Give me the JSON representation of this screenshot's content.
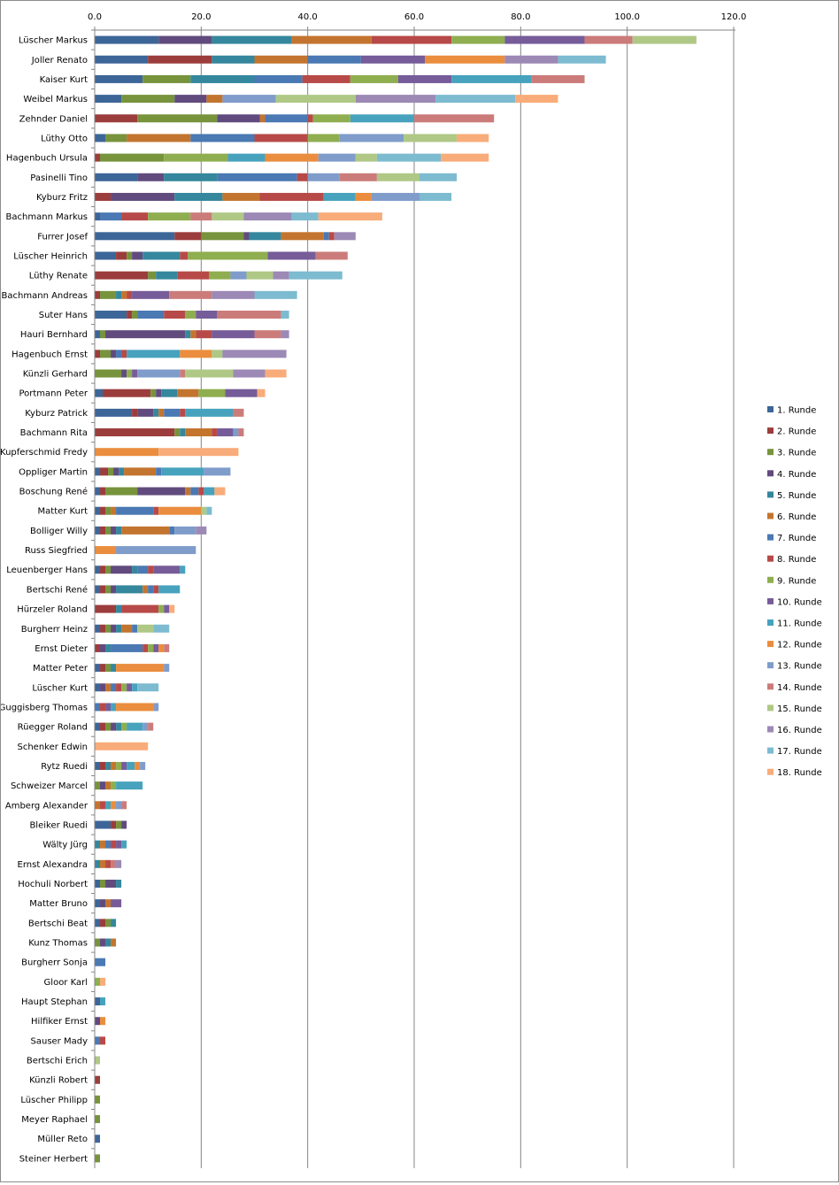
{
  "chart_data": {
    "type": "bar",
    "orientation": "horizontal",
    "stacked": true,
    "title": "",
    "xlabel": "",
    "ylabel": "",
    "xlim": [
      0,
      120
    ],
    "x_ticks": [
      "0.0",
      "20.0",
      "40.0",
      "60.0",
      "80.0",
      "100.0",
      "120.0"
    ],
    "grid": true,
    "legend_position": "right",
    "series_names": [
      "1. Runde",
      "2. Runde",
      "3. Runde",
      "4. Runde",
      "5. Runde",
      "6. Runde",
      "7. Runde",
      "8. Runde",
      "9. Runde",
      "10. Runde",
      "11. Runde",
      "12. Runde",
      "13. Runde",
      "14. Runde",
      "15. Runde",
      "16. Runde",
      "17. Runde",
      "18. Runde"
    ],
    "series_colors": [
      "#3d6698",
      "#9b3d3c",
      "#77933c",
      "#614b7e",
      "#35879d",
      "#c3752f",
      "#4a79b3",
      "#b74a48",
      "#8fae50",
      "#765c99",
      "#47a2bd",
      "#ea8d3e",
      "#7f9cca",
      "#cb7c7a",
      "#afc886",
      "#9c89b5",
      "#7dbbd0",
      "#f8ac79"
    ],
    "rows": [
      {
        "name": "Lüscher Markus",
        "values": [
          12,
          0,
          0,
          10,
          15,
          15,
          0,
          15,
          10,
          15,
          0,
          0,
          0,
          9,
          12,
          0,
          0,
          0
        ]
      },
      {
        "name": "Joller Renato",
        "values": [
          10,
          12,
          0,
          0,
          8,
          10,
          10,
          0,
          0,
          12,
          0,
          15,
          0,
          0,
          0,
          10,
          9,
          0
        ]
      },
      {
        "name": "Kaiser Kurt",
        "values": [
          9,
          0,
          9,
          0,
          12,
          0,
          9,
          9,
          9,
          10,
          15,
          0,
          0,
          10,
          0,
          0,
          0,
          0
        ]
      },
      {
        "name": "Weibel Markus",
        "values": [
          5,
          0,
          10,
          6,
          0,
          3,
          0,
          0,
          0,
          0,
          0,
          0,
          10,
          0,
          15,
          15,
          15,
          8
        ]
      },
      {
        "name": "Zehnder Daniel",
        "values": [
          0,
          8,
          15,
          8,
          0,
          1,
          8,
          1,
          7,
          0,
          12,
          0,
          0,
          15,
          0,
          0,
          0,
          0
        ]
      },
      {
        "name": "Lüthy Otto",
        "values": [
          2,
          0,
          4,
          0,
          0,
          12,
          12,
          10,
          6,
          0,
          0,
          0,
          12,
          0,
          10,
          0,
          0,
          6
        ]
      },
      {
        "name": "Hagenbuch Ursula",
        "values": [
          0,
          1,
          12,
          0,
          0,
          0,
          0,
          0,
          12,
          0,
          7,
          10,
          7,
          0,
          4,
          0,
          12,
          9
        ]
      },
      {
        "name": "Pasinelli Tino",
        "values": [
          8,
          0,
          0,
          5,
          10,
          0,
          15,
          2,
          0,
          0,
          0,
          0,
          6,
          7,
          8,
          0,
          7,
          0
        ]
      },
      {
        "name": "Kyburz Fritz",
        "values": [
          0,
          3,
          0,
          12,
          9,
          7,
          0,
          12,
          0,
          0,
          6,
          3,
          9,
          0,
          0,
          0,
          6,
          0
        ]
      },
      {
        "name": "Bachmann Markus",
        "values": [
          1,
          0,
          0,
          0,
          0,
          0,
          4,
          5,
          8,
          0,
          0,
          0,
          0,
          4,
          6,
          9,
          5,
          12
        ]
      },
      {
        "name": "Furrer Josef",
        "values": [
          15,
          5,
          8,
          1,
          6,
          8,
          1,
          1,
          0,
          0,
          0,
          0,
          0,
          0,
          0,
          4,
          0,
          0
        ]
      },
      {
        "name": "Lüscher Heinrich",
        "values": [
          4,
          2,
          1,
          2,
          7,
          0,
          0,
          1.5,
          15,
          9,
          0,
          0,
          0,
          6,
          0,
          0,
          0,
          0
        ]
      },
      {
        "name": "Lüthy Renate",
        "values": [
          0,
          10,
          1.5,
          0,
          4,
          0,
          0,
          6,
          4,
          0,
          0,
          0,
          3,
          0,
          5,
          3,
          10,
          0
        ]
      },
      {
        "name": "Bachmann Andreas",
        "values": [
          0,
          1,
          3,
          0,
          1,
          1,
          0,
          1,
          0,
          7,
          0,
          0,
          0,
          8,
          0,
          8,
          8,
          0
        ]
      },
      {
        "name": "Suter Hans",
        "values": [
          6,
          1,
          1,
          0,
          0,
          0,
          5,
          4,
          2,
          4,
          0,
          0,
          0,
          12,
          0,
          0,
          1.5,
          0
        ]
      },
      {
        "name": "Hauri Bernhard",
        "values": [
          1,
          0,
          1,
          15,
          1,
          1,
          0,
          3,
          0,
          8,
          0,
          0,
          0,
          5,
          0,
          1.5,
          0,
          0
        ]
      },
      {
        "name": "Hagenbuch Ernst",
        "values": [
          0,
          1,
          2,
          1,
          0,
          0,
          1,
          1,
          0,
          0,
          10,
          6,
          0,
          0,
          2,
          12,
          0,
          0
        ]
      },
      {
        "name": "Künzli Gerhard",
        "values": [
          0,
          0,
          5,
          1,
          0,
          0,
          0,
          0,
          1,
          1,
          0,
          0,
          8,
          1,
          9,
          6,
          0,
          4
        ]
      },
      {
        "name": "Portmann Peter",
        "values": [
          1.5,
          9,
          1,
          1,
          3,
          4,
          0,
          0,
          5,
          6,
          0,
          0,
          0,
          0,
          0,
          0,
          0,
          1.5
        ]
      },
      {
        "name": "Kyburz Patrick",
        "values": [
          7,
          1,
          0,
          3,
          1,
          1,
          3,
          1,
          0,
          0,
          9,
          0,
          0,
          2,
          0,
          0,
          0,
          0
        ]
      },
      {
        "name": "Bachmann Rita",
        "values": [
          0,
          15,
          1,
          0,
          1,
          5,
          0,
          1,
          0,
          3,
          0,
          0,
          1,
          1,
          0,
          0,
          0,
          0
        ]
      },
      {
        "name": "Kupferschmid Fredy",
        "values": [
          0,
          0,
          0,
          0,
          0,
          0,
          0,
          0,
          0,
          0,
          0,
          12,
          0,
          0,
          0,
          0,
          0,
          15
        ]
      },
      {
        "name": "Oppliger Martin",
        "values": [
          1,
          1.5,
          1,
          1,
          1,
          6,
          1,
          0,
          0,
          0,
          8,
          0,
          5,
          0,
          0,
          0,
          0,
          0
        ]
      },
      {
        "name": "Boschung René",
        "values": [
          1,
          1,
          6,
          9,
          0,
          1,
          1.5,
          1,
          0,
          0,
          2,
          0,
          0,
          0,
          0,
          0,
          0,
          2
        ]
      },
      {
        "name": "Matter Kurt",
        "values": [
          1,
          1,
          1,
          0,
          0,
          1,
          7,
          1,
          0,
          0,
          0,
          8,
          0,
          0,
          1,
          0,
          1,
          0
        ]
      },
      {
        "name": "Bolliger Willy",
        "values": [
          1,
          1,
          1,
          1,
          1,
          9,
          1,
          0,
          0,
          0,
          0,
          0,
          4,
          0,
          0,
          2,
          0,
          0
        ]
      },
      {
        "name": "Russ Siegfried",
        "values": [
          0,
          0,
          0,
          0,
          0,
          0,
          0,
          0,
          0,
          0,
          0,
          4,
          15,
          0,
          0,
          0,
          0,
          0
        ]
      },
      {
        "name": "Leuenberger Hans",
        "values": [
          1,
          1,
          1,
          4,
          1,
          0,
          2,
          1,
          0,
          5,
          1,
          0,
          0,
          0,
          0,
          0,
          0,
          0
        ]
      },
      {
        "name": "Bertschi René",
        "values": [
          1,
          1,
          1,
          1,
          5,
          1,
          1,
          1,
          0,
          0,
          4,
          0,
          0,
          0,
          0,
          0,
          0,
          0
        ]
      },
      {
        "name": "Hürzeler Roland",
        "values": [
          0,
          4,
          0,
          0,
          1,
          0,
          0,
          7,
          1,
          1,
          0,
          0,
          0,
          0,
          0,
          0,
          0,
          1
        ]
      },
      {
        "name": "Burgherr Heinz",
        "values": [
          1,
          1,
          1,
          1,
          1,
          2,
          1,
          0,
          0,
          0,
          0,
          0,
          0,
          0,
          3,
          0,
          3,
          0
        ]
      },
      {
        "name": "Ernst Dieter",
        "values": [
          0,
          1,
          0,
          1,
          1,
          0,
          6,
          1,
          1,
          1,
          0,
          1,
          0,
          1,
          0,
          0,
          0,
          0
        ]
      },
      {
        "name": "Matter Peter",
        "values": [
          1,
          1,
          1,
          0,
          1,
          0,
          0,
          0,
          0,
          0,
          0,
          9,
          1,
          0,
          0,
          0,
          0,
          0
        ]
      },
      {
        "name": "Lüscher Kurt",
        "values": [
          1,
          0,
          0,
          1,
          0,
          1,
          1,
          1,
          1,
          1,
          1,
          0,
          0,
          0,
          0,
          0,
          4,
          0
        ]
      },
      {
        "name": "Guggisberg Thomas",
        "values": [
          0,
          0,
          0,
          0,
          0,
          0,
          1,
          1,
          0,
          1,
          1,
          7,
          1,
          0,
          0,
          0,
          0,
          0
        ]
      },
      {
        "name": "Rüegger Roland",
        "values": [
          1,
          1,
          1,
          1,
          1,
          0,
          0,
          0,
          1,
          0,
          3,
          0,
          1,
          1,
          0,
          0,
          0,
          0
        ]
      },
      {
        "name": "Schenker Edwin",
        "values": [
          0,
          0,
          0,
          0,
          0,
          0,
          0,
          0,
          0,
          0,
          0,
          0,
          0,
          0,
          0,
          0,
          0,
          10
        ]
      },
      {
        "name": "Rytz Ruedi",
        "values": [
          1,
          1,
          0,
          0,
          1,
          1,
          0,
          0,
          1,
          1,
          1.5,
          1,
          1,
          0,
          0,
          0,
          0,
          0
        ]
      },
      {
        "name": "Schweizer Marcel",
        "values": [
          0,
          0,
          1,
          1,
          0,
          1,
          0,
          0,
          1,
          0,
          5,
          0,
          0,
          0,
          0,
          0,
          0,
          0
        ]
      },
      {
        "name": "Amberg Alexander",
        "values": [
          0,
          0,
          0,
          0,
          0,
          1,
          0,
          1,
          0,
          0,
          1,
          1,
          1,
          1,
          0,
          0,
          0,
          0
        ]
      },
      {
        "name": "Bleiker Ruedi",
        "values": [
          3,
          1,
          1,
          1,
          0,
          0,
          0,
          0,
          0,
          0,
          0,
          0,
          0,
          0,
          0,
          0,
          0,
          0
        ]
      },
      {
        "name": "Wälty Jürg",
        "values": [
          0,
          0,
          0,
          0,
          1,
          1,
          1,
          1,
          0,
          1,
          1,
          0,
          0,
          0,
          0,
          0,
          0,
          0
        ]
      },
      {
        "name": "Ernst Alexandra",
        "values": [
          0,
          0,
          0,
          0,
          1,
          1,
          0,
          1,
          0,
          0,
          0,
          0,
          0,
          1,
          0,
          1,
          0,
          0
        ]
      },
      {
        "name": "Hochuli Norbert",
        "values": [
          1,
          0,
          1,
          2,
          1,
          0,
          0,
          0,
          0,
          0,
          0,
          0,
          0,
          0,
          0,
          0,
          0,
          0
        ]
      },
      {
        "name": "Matter Bruno",
        "values": [
          1,
          0,
          0,
          1,
          0,
          1,
          0,
          0,
          0,
          2,
          0,
          0,
          0,
          0,
          0,
          0,
          0,
          0
        ]
      },
      {
        "name": "Bertschi Beat",
        "values": [
          1,
          1,
          1,
          0,
          1,
          0,
          0,
          0,
          0,
          0,
          0,
          0,
          0,
          0,
          0,
          0,
          0,
          0
        ]
      },
      {
        "name": "Kunz Thomas",
        "values": [
          0,
          0,
          1,
          1,
          1,
          1,
          0,
          0,
          0,
          0,
          0,
          0,
          0,
          0,
          0,
          0,
          0,
          0
        ]
      },
      {
        "name": "Burgherr Sonja",
        "values": [
          0,
          0,
          0,
          0,
          0,
          0,
          2,
          0,
          0,
          0,
          0,
          0,
          0,
          0,
          0,
          0,
          0,
          0
        ]
      },
      {
        "name": "Gloor Karl",
        "values": [
          0,
          0,
          0,
          0,
          0,
          0,
          0,
          0,
          1,
          0,
          0,
          0,
          0,
          0,
          0,
          0,
          0,
          1
        ]
      },
      {
        "name": "Haupt Stephan",
        "values": [
          1,
          0,
          0,
          0,
          0,
          0,
          0,
          0,
          0,
          0,
          1,
          0,
          0,
          0,
          0,
          0,
          0,
          0
        ]
      },
      {
        "name": "Hilfiker Ernst",
        "values": [
          0,
          0,
          0,
          1,
          0,
          0,
          0,
          0,
          0,
          0,
          0,
          1,
          0,
          0,
          0,
          0,
          0,
          0
        ]
      },
      {
        "name": "Sauser Mady",
        "values": [
          0,
          0,
          0,
          0,
          0,
          0,
          1,
          1,
          0,
          0,
          0,
          0,
          0,
          0,
          0,
          0,
          0,
          0
        ]
      },
      {
        "name": "Bertschi Erich",
        "values": [
          0,
          0,
          0,
          0,
          0,
          0,
          0,
          0,
          0,
          0,
          0,
          0,
          0,
          0,
          1,
          0,
          0,
          0
        ]
      },
      {
        "name": "Künzli Robert",
        "values": [
          0,
          1,
          0,
          0,
          0,
          0,
          0,
          0,
          0,
          0,
          0,
          0,
          0,
          0,
          0,
          0,
          0,
          0
        ]
      },
      {
        "name": "Lüscher Philipp",
        "values": [
          0,
          0,
          1,
          0,
          0,
          0,
          0,
          0,
          0,
          0,
          0,
          0,
          0,
          0,
          0,
          0,
          0,
          0
        ]
      },
      {
        "name": "Meyer Raphael",
        "values": [
          0,
          0,
          1,
          0,
          0,
          0,
          0,
          0,
          0,
          0,
          0,
          0,
          0,
          0,
          0,
          0,
          0,
          0
        ]
      },
      {
        "name": "Müller Reto",
        "values": [
          1,
          0,
          0,
          0,
          0,
          0,
          0,
          0,
          0,
          0,
          0,
          0,
          0,
          0,
          0,
          0,
          0,
          0
        ]
      },
      {
        "name": "Steiner Herbert",
        "values": [
          0,
          0,
          1,
          0,
          0,
          0,
          0,
          0,
          0,
          0,
          0,
          0,
          0,
          0,
          0,
          0,
          0,
          0
        ]
      }
    ]
  }
}
